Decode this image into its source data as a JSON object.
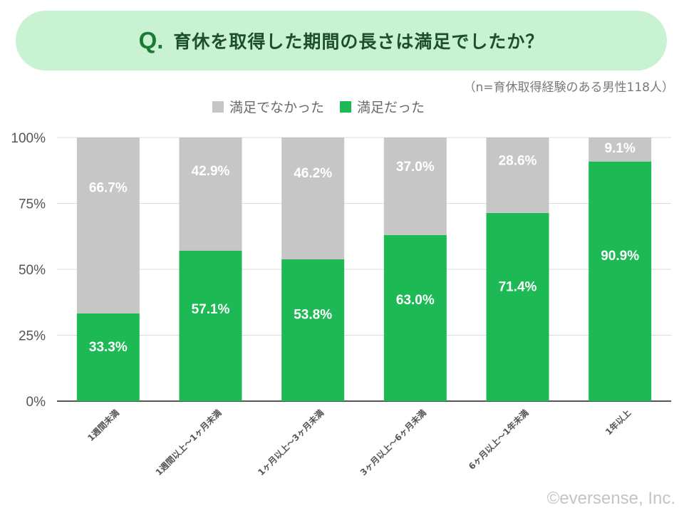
{
  "title": {
    "q": "Q.",
    "text": "育休を取得した期間の長さは満足でしたか？"
  },
  "subtitle": "（n=育休取得経験のある男性118人）",
  "copyright": "©eversense, Inc.",
  "colors": {
    "unsatisfied": "#c6c6c6",
    "satisfied": "#1db954",
    "title_bg": "#c9f2d2"
  },
  "chart_data": {
    "type": "bar",
    "stacked": true,
    "categories": [
      "1週間未満",
      "1週間以上〜1ヶ月未満",
      "1ヶ月以上〜3ヶ月未満",
      "3ヶ月以上〜6ヶ月未満",
      "6ヶ月以上〜1年未満",
      "1年以上"
    ],
    "series": [
      {
        "name": "満足だった",
        "values": [
          33.3,
          57.1,
          53.8,
          63.0,
          71.4,
          90.9
        ],
        "labels": [
          "33.3%",
          "57.1%",
          "53.8%",
          "63.0%",
          "71.4%",
          "90.9%"
        ]
      },
      {
        "name": "満足でなかった",
        "values": [
          66.7,
          42.9,
          46.2,
          37.0,
          28.6,
          9.1
        ],
        "labels": [
          "66.7%",
          "42.9%",
          "46.2%",
          "37.0%",
          "28.6%",
          "9.1%"
        ]
      }
    ],
    "yticks": [
      "0%",
      "25%",
      "50%",
      "75%",
      "100%"
    ],
    "ylim": [
      0,
      100
    ],
    "grid": true,
    "legend": "top"
  }
}
